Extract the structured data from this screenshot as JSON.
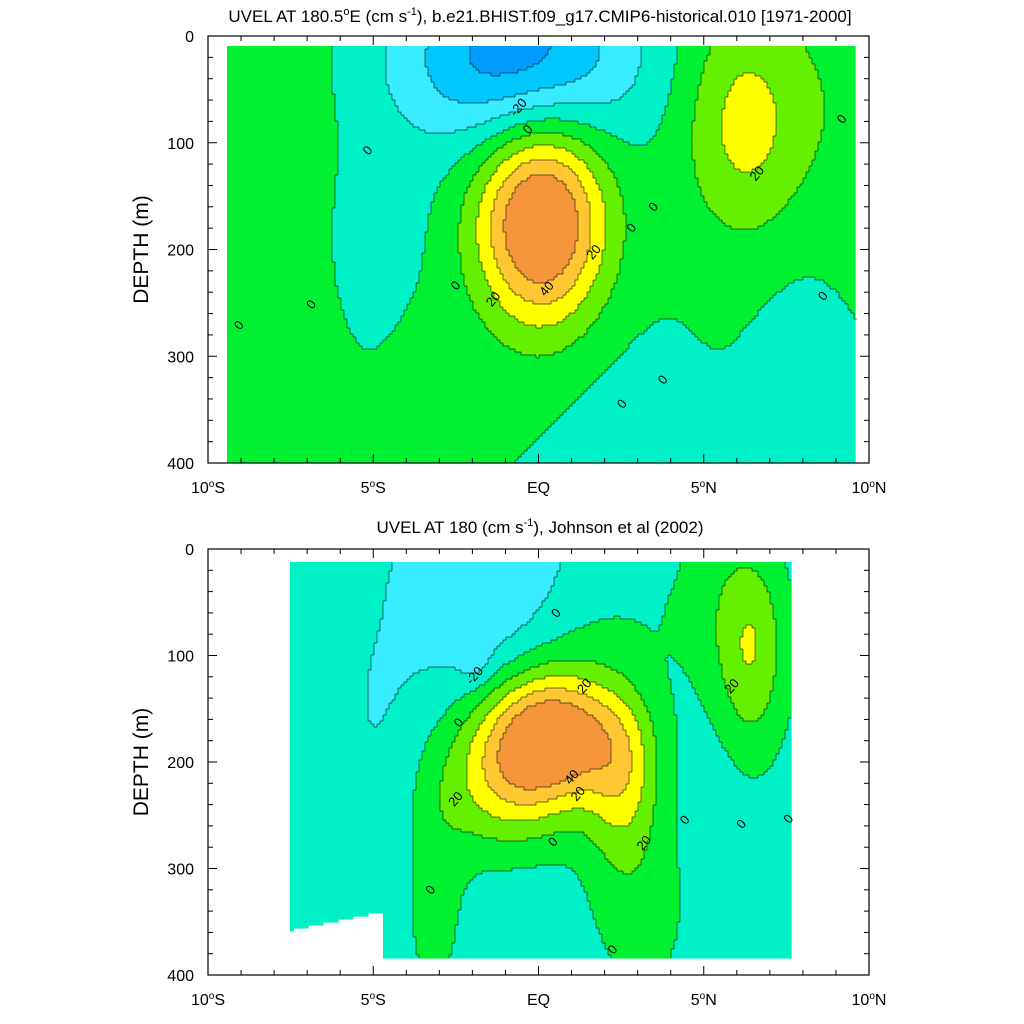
{
  "chart_data": [
    {
      "type": "contour",
      "title": "UVEL AT 180.5°E (cm s-1), b.e21.BHIST.f09_g17.CMIP6-historical.010 [1971-2000]",
      "title_parts": {
        "pre": "UVEL AT 180.5",
        "deg": "o",
        "mid": "E (cm s",
        "sup": "-1",
        "post": "), b.e21.BHIST.f09_g17.CMIP6-historical.010 [1971-2000]"
      },
      "xlabel": "",
      "ylabel": "DEPTH (m)",
      "xlim": [
        -10,
        10
      ],
      "ylim": [
        400,
        0
      ],
      "x_ticks": [
        {
          "value": -10,
          "num": "10",
          "hemi": "S"
        },
        {
          "value": -5,
          "num": "5",
          "hemi": "S"
        },
        {
          "value": 0,
          "num": "EQ",
          "hemi": ""
        },
        {
          "value": 5,
          "num": "5",
          "hemi": "N"
        },
        {
          "value": 10,
          "num": "10",
          "hemi": "N"
        }
      ],
      "y_ticks": [
        0,
        100,
        200,
        300,
        400
      ],
      "contour_interval": 10,
      "contour_labels": [
        {
          "text": "-20",
          "lat": -0.7,
          "depth": 62
        },
        {
          "text": "0",
          "lat": -0.4,
          "depth": 83
        },
        {
          "text": "0",
          "lat": -5.5,
          "depth": 103
        },
        {
          "text": "0",
          "lat": -2.7,
          "depth": 232
        },
        {
          "text": "0",
          "lat": -7.3,
          "depth": 250
        },
        {
          "text": "0",
          "lat": -9.6,
          "depth": 270
        },
        {
          "text": "20",
          "lat": -1.5,
          "depth": 245
        },
        {
          "text": "40",
          "lat": 0.2,
          "depth": 235
        },
        {
          "text": "20",
          "lat": 1.7,
          "depth": 200
        },
        {
          "text": "0",
          "lat": 2.9,
          "depth": 177
        },
        {
          "text": "0",
          "lat": 3.6,
          "depth": 157
        },
        {
          "text": "20",
          "lat": 6.9,
          "depth": 125
        },
        {
          "text": "0",
          "lat": 9.6,
          "depth": 73
        },
        {
          "text": "0",
          "lat": 9.0,
          "depth": 242
        },
        {
          "text": "0",
          "lat": 3.9,
          "depth": 322
        },
        {
          "text": "0",
          "lat": 2.6,
          "depth": 345
        }
      ]
    },
    {
      "type": "contour",
      "title": "UVEL AT 180 (cm s-1), Johnson et al (2002)",
      "title_parts": {
        "pre": "UVEL AT 180",
        "deg": "",
        "mid": " (cm s",
        "sup": "-1",
        "post": "), Johnson et al (2002)"
      },
      "xlabel": "",
      "ylabel": "DEPTH (m)",
      "xlim": [
        -10,
        10
      ],
      "ylim": [
        400,
        0
      ],
      "x_ticks": [
        {
          "value": -10,
          "num": "10",
          "hemi": "S"
        },
        {
          "value": -5,
          "num": "5",
          "hemi": "S"
        },
        {
          "value": 0,
          "num": "EQ",
          "hemi": ""
        },
        {
          "value": 5,
          "num": "5",
          "hemi": "N"
        },
        {
          "value": 10,
          "num": "10",
          "hemi": "N"
        }
      ],
      "y_ticks": [
        0,
        100,
        200,
        300,
        400
      ],
      "contour_interval": 10,
      "data_extent": {
        "lat": [
          -8,
          8
        ],
        "depth": [
          5,
          385
        ]
      },
      "contour_labels": [
        {
          "text": "0",
          "lat": 0.5,
          "depth": 55
        },
        {
          "text": "-20",
          "lat": -2.1,
          "depth": 115
        },
        {
          "text": "20",
          "lat": 1.4,
          "depth": 125
        },
        {
          "text": "20",
          "lat": 6.1,
          "depth": 125
        },
        {
          "text": "0",
          "lat": -2.6,
          "depth": 160
        },
        {
          "text": "40",
          "lat": 1.0,
          "depth": 212
        },
        {
          "text": "20",
          "lat": 1.2,
          "depth": 228
        },
        {
          "text": "20",
          "lat": -2.7,
          "depth": 233
        },
        {
          "text": "0",
          "lat": 4.6,
          "depth": 253
        },
        {
          "text": "0",
          "lat": 6.4,
          "depth": 257
        },
        {
          "text": "0",
          "lat": 7.9,
          "depth": 252
        },
        {
          "text": "20",
          "lat": 3.3,
          "depth": 275
        },
        {
          "text": "0",
          "lat": 0.4,
          "depth": 274
        },
        {
          "text": "0",
          "lat": -3.5,
          "depth": 320
        },
        {
          "text": "0",
          "lat": 2.3,
          "depth": 377
        }
      ]
    }
  ],
  "colors": {
    "level_m30": "#009dff",
    "level_m20": "#00c8ff",
    "level_m10": "#38ecff",
    "level_0": "#00f0c8",
    "level_10": "#00f032",
    "level_20": "#64f000",
    "level_30": "#ffff00",
    "level_40": "#ffc832",
    "level_50": "#f5963c",
    "missing": "#ffffff",
    "line": "#000000"
  }
}
